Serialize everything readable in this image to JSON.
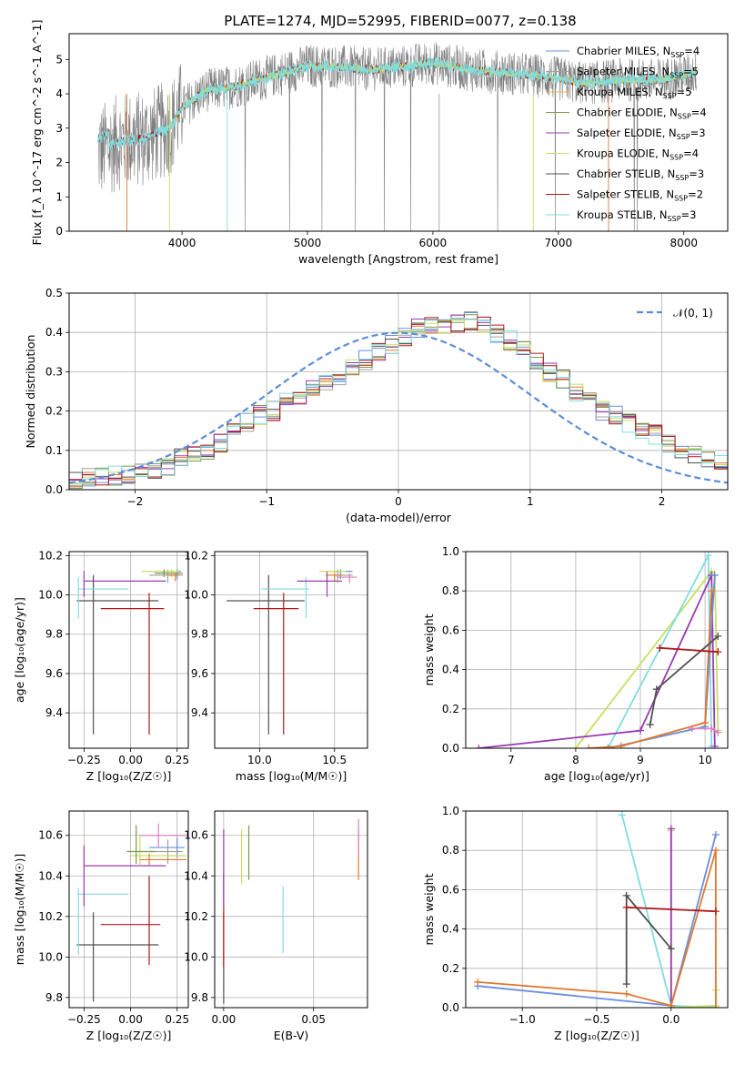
{
  "figure_title": "PLATE=1274, MJD=52995, FIBERID=0077, z=0.138",
  "colors": {
    "Chabrier MILES": "#6a8ee0",
    "Salpeter MILES": "#a0a0a0",
    "Kroupa MILES": "#e0b84a",
    "Chabrier ELODIE": "#7a9a4a",
    "Salpeter ELODIE": "#9a3ab0",
    "Kroupa ELODIE": "#c8e060",
    "Chabrier STELIB": "#505050",
    "Salpeter STELIB": "#b01818",
    "Kroupa STELIB": "#80dce0",
    "extra_orange": "#e07a30",
    "extra_pink": "#e080c0",
    "normal_curve": "#5b8ddb"
  },
  "chart_data": [
    {
      "type": "line",
      "panel": "spectrum",
      "title": "PLATE=1274, MJD=52995, FIBERID=0077, z=0.138",
      "xlabel": "wavelength [Angstrom, rest frame]",
      "ylabel": "Flux [f_λ 10^-17 erg cm^-2 s^-1 A^-1]",
      "xlim": [
        3100,
        8350
      ],
      "ylim": [
        0,
        5.75
      ],
      "xticks": [
        4000,
        5000,
        6000,
        7000,
        8000
      ],
      "yticks": [
        0,
        1,
        2,
        3,
        4,
        5
      ],
      "legend_position": "right",
      "legend": [
        {
          "label": "Chabrier MILES, N",
          "sub": "SSP",
          "tail": "=4"
        },
        {
          "label": "Salpeter MILES, N",
          "sub": "SSP",
          "tail": "=5"
        },
        {
          "label": "Kroupa MILES, N",
          "sub": "SSP",
          "tail": "=5"
        },
        {
          "label": "Chabrier ELODIE, N",
          "sub": "SSP",
          "tail": "=4"
        },
        {
          "label": "Salpeter ELODIE, N",
          "sub": "SSP",
          "tail": "=3"
        },
        {
          "label": "Kroupa ELODIE, N",
          "sub": "SSP",
          "tail": "=4"
        },
        {
          "label": "Chabrier STELIB, N",
          "sub": "SSP",
          "tail": "=3"
        },
        {
          "label": "Salpeter STELIB, N",
          "sub": "SSP",
          "tail": "=2"
        },
        {
          "label": "Kroupa STELIB, N",
          "sub": "SSP",
          "tail": "=3"
        }
      ],
      "continuum_x": [
        3330,
        3500,
        3700,
        3900,
        4000,
        4200,
        4400,
        4600,
        4800,
        5000,
        5200,
        5500,
        5800,
        6000,
        6300,
        6600,
        6900,
        7200,
        7500,
        7800,
        8100
      ],
      "continuum_y": [
        2.3,
        2.6,
        2.7,
        3.0,
        3.6,
        4.1,
        4.2,
        4.4,
        4.6,
        4.8,
        4.8,
        4.7,
        4.8,
        4.9,
        4.7,
        4.6,
        4.5,
        4.3,
        4.4,
        4.4,
        4.6
      ]
    },
    {
      "type": "bar",
      "panel": "residuals",
      "xlabel": "(data-model)/error",
      "ylabel": "Normed distribution",
      "xlim": [
        -2.5,
        2.5
      ],
      "ylim": [
        0,
        0.5
      ],
      "xticks": [
        -2,
        -1,
        0,
        1,
        2
      ],
      "xtick_labels": [
        "−2",
        "−1",
        "0",
        "1",
        "2"
      ],
      "yticks": [
        0,
        0.1,
        0.2,
        0.3,
        0.4,
        0.5
      ],
      "ytick_labels": [
        "0.0",
        "0.1",
        "0.2",
        "0.3",
        "0.4",
        "0.5"
      ],
      "legend_label": "𝒩(0, 1)",
      "legend_position": "top-right",
      "bin_edges_start": -2.5,
      "bin_width": 0.1,
      "hist_values": [
        0.02,
        0.03,
        0.03,
        0.035,
        0.04,
        0.04,
        0.05,
        0.06,
        0.08,
        0.09,
        0.1,
        0.12,
        0.15,
        0.17,
        0.19,
        0.2,
        0.22,
        0.24,
        0.26,
        0.27,
        0.29,
        0.31,
        0.33,
        0.35,
        0.37,
        0.39,
        0.41,
        0.42,
        0.41,
        0.42,
        0.43,
        0.42,
        0.4,
        0.38,
        0.36,
        0.33,
        0.3,
        0.28,
        0.25,
        0.23,
        0.2,
        0.19,
        0.17,
        0.15,
        0.14,
        0.12,
        0.1,
        0.09,
        0.08,
        0.07,
        0.06,
        0.05,
        0.05,
        0.04,
        0.035,
        0.03,
        0.03,
        0.025,
        0.03,
        0.025
      ]
    },
    {
      "type": "scatter",
      "panel": "age_vs_Z",
      "xlabel": "Z [log₁₀(Z/Z☉)]",
      "ylabel": "age  [log₁₀(age/yr)]",
      "xlim": [
        -0.33,
        0.31
      ],
      "ylim": [
        9.22,
        10.22
      ],
      "xticks": [
        -0.25,
        0.0,
        0.25
      ],
      "xtick_labels": [
        "−0.25",
        "0.00",
        "0.25"
      ],
      "yticks": [
        9.4,
        9.6,
        9.8,
        10.0,
        10.2
      ],
      "ytick_labels": [
        "9.4",
        "9.6",
        "9.8",
        "10.0",
        "10.2"
      ],
      "errorbars": [
        {
          "series": "Chabrier STELIB",
          "x": -0.2,
          "xerr": [
            0.09,
            0.35
          ],
          "y": 9.97,
          "yerr": [
            0.68,
            0.13
          ]
        },
        {
          "series": "Salpeter STELIB",
          "x": 0.1,
          "xerr": [
            0.26,
            0.08
          ],
          "y": 9.93,
          "yerr": [
            0.64,
            0.08
          ]
        },
        {
          "series": "Kroupa STELIB",
          "x": -0.28,
          "xerr": [
            0.0,
            0.27
          ],
          "y": 10.03,
          "yerr": [
            0.15,
            0.06
          ]
        },
        {
          "series": "Salpeter ELODIE",
          "x": -0.25,
          "xerr": [
            0.0,
            0.44
          ],
          "y": 10.07,
          "yerr": [
            0.08,
            0.05
          ]
        },
        {
          "series": "Chabrier MILES",
          "x": 0.25,
          "xerr": [
            0.15,
            0.02
          ],
          "y": 10.12,
          "yerr": [
            0.04,
            0.01
          ]
        },
        {
          "series": "Salpeter MILES",
          "x": 0.2,
          "xerr": [
            0.1,
            0.08
          ],
          "y": 10.1,
          "yerr": [
            0.04,
            0.03
          ]
        },
        {
          "series": "Kroupa ELODIE",
          "x": 0.22,
          "xerr": [
            0.16,
            0.04
          ],
          "y": 10.12,
          "yerr": [
            0.03,
            0.01
          ]
        },
        {
          "series": "extra_orange",
          "x": 0.24,
          "xerr": [
            0.04,
            0.02
          ],
          "y": 10.1,
          "yerr": [
            0.03,
            0.01
          ]
        },
        {
          "series": "Chabrier ELODIE",
          "x": 0.18,
          "xerr": [
            0.05,
            0.1
          ],
          "y": 10.11,
          "yerr": [
            0.02,
            0.02
          ]
        }
      ]
    },
    {
      "type": "scatter",
      "panel": "age_vs_mass",
      "xlabel": "mass [log₁₀(M/M☉)]",
      "ylabel": "",
      "xlim": [
        9.7,
        10.72
      ],
      "ylim": [
        9.22,
        10.22
      ],
      "xticks": [
        10.0,
        10.5
      ],
      "xtick_labels": [
        "10.0",
        "10.5"
      ],
      "yticks": [
        9.4,
        9.6,
        9.8,
        10.0,
        10.2
      ],
      "ytick_labels": [
        "9.4",
        "9.6",
        "9.8",
        "10.0",
        "10.2"
      ],
      "errorbars": [
        {
          "series": "Chabrier STELIB",
          "x": 10.06,
          "xerr": [
            0.28,
            0.24
          ],
          "y": 9.97,
          "yerr": [
            0.68,
            0.13
          ]
        },
        {
          "series": "Salpeter STELIB",
          "x": 10.16,
          "xerr": [
            0.2,
            0.1
          ],
          "y": 9.93,
          "yerr": [
            0.64,
            0.08
          ]
        },
        {
          "series": "Kroupa STELIB",
          "x": 10.31,
          "xerr": [
            0.3,
            0.02
          ],
          "y": 10.03,
          "yerr": [
            0.15,
            0.06
          ]
        },
        {
          "series": "Salpeter ELODIE",
          "x": 10.45,
          "xerr": [
            0.2,
            0.1
          ],
          "y": 10.07,
          "yerr": [
            0.08,
            0.05
          ]
        },
        {
          "series": "Chabrier MILES",
          "x": 10.54,
          "xerr": [
            0.06,
            0.08
          ],
          "y": 10.12,
          "yerr": [
            0.04,
            0.01
          ]
        },
        {
          "series": "Salpeter MILES",
          "x": 10.52,
          "xerr": [
            0.07,
            0.1
          ],
          "y": 10.1,
          "yerr": [
            0.04,
            0.03
          ]
        },
        {
          "series": "Kroupa ELODIE",
          "x": 10.5,
          "xerr": [
            0.1,
            0.08
          ],
          "y": 10.12,
          "yerr": [
            0.03,
            0.01
          ]
        },
        {
          "series": "extra_orange",
          "x": 10.5,
          "xerr": [
            0.06,
            0.06
          ],
          "y": 10.1,
          "yerr": [
            0.03,
            0.01
          ]
        },
        {
          "series": "extra_pink",
          "x": 10.6,
          "xerr": [
            0.08,
            0.05
          ],
          "y": 10.09,
          "yerr": [
            0.03,
            0.02
          ]
        }
      ]
    },
    {
      "type": "line",
      "panel": "mass_weight_vs_age",
      "xlabel": "age  [log₁₀(age/yr)]",
      "ylabel": "mass weight",
      "xlim": [
        6.3,
        10.35
      ],
      "ylim": [
        0,
        1
      ],
      "xticks": [
        7,
        8,
        9,
        10
      ],
      "xtick_labels": [
        "7",
        "8",
        "9",
        "10"
      ],
      "yticks": [
        0,
        0.2,
        0.4,
        0.6,
        0.8,
        1.0
      ],
      "ytick_labels": [
        "0.0",
        "0.2",
        "0.4",
        "0.6",
        "0.8",
        "1.0"
      ],
      "series": [
        {
          "name": "Kroupa ELODIE",
          "x": [
            8.0,
            10.1,
            10.15,
            10.2
          ],
          "y": [
            0.0,
            0.9,
            0.88,
            0.09
          ]
        },
        {
          "name": "Kroupa STELIB",
          "x": [
            8.5,
            10.05,
            10.1
          ],
          "y": [
            0.0,
            0.98,
            0.01
          ]
        },
        {
          "name": "Salpeter ELODIE",
          "x": [
            6.5,
            9.0,
            10.1,
            10.15
          ],
          "y": [
            0.0,
            0.09,
            0.88,
            0.01
          ]
        },
        {
          "name": "Chabrier MILES",
          "x": [
            8.5,
            10.0,
            10.15
          ],
          "y": [
            0.0,
            0.11,
            0.88
          ]
        },
        {
          "name": "extra_orange",
          "x": [
            8.2,
            8.7,
            10.0,
            10.1
          ],
          "y": [
            0.0,
            0.01,
            0.13,
            0.8
          ]
        },
        {
          "name": "extra_pink",
          "x": [
            9.8,
            10.1,
            10.2
          ],
          "y": [
            0.1,
            0.1,
            0.08
          ]
        },
        {
          "name": "Chabrier STELIB",
          "x": [
            9.15,
            9.25,
            10.2
          ],
          "y": [
            0.12,
            0.3,
            0.57
          ]
        },
        {
          "name": "Salpeter STELIB",
          "x": [
            9.3,
            10.2
          ],
          "y": [
            0.51,
            0.49
          ]
        }
      ]
    },
    {
      "type": "scatter",
      "panel": "mass_vs_Z",
      "xlabel": "Z [log₁₀(Z/Z☉)]",
      "ylabel": "mass [log₁₀(M/M☉)]",
      "xlim": [
        -0.33,
        0.31
      ],
      "ylim": [
        9.75,
        10.72
      ],
      "xticks": [
        -0.25,
        0.0,
        0.25
      ],
      "xtick_labels": [
        "−0.25",
        "0.00",
        "0.25"
      ],
      "yticks": [
        9.8,
        10.0,
        10.2,
        10.4,
        10.6
      ],
      "ytick_labels": [
        "9.8",
        "10.0",
        "10.2",
        "10.4",
        "10.6"
      ],
      "errorbars": [
        {
          "series": "Chabrier STELIB",
          "x": -0.2,
          "xerr": [
            0.09,
            0.35
          ],
          "y": 10.06,
          "yerr": [
            0.28,
            0.16
          ]
        },
        {
          "series": "Salpeter STELIB",
          "x": 0.1,
          "xerr": [
            0.26,
            0.06
          ],
          "y": 10.16,
          "yerr": [
            0.2,
            0.24
          ]
        },
        {
          "series": "Kroupa STELIB",
          "x": -0.28,
          "xerr": [
            0.0,
            0.27
          ],
          "y": 10.31,
          "yerr": [
            0.3,
            0.03
          ]
        },
        {
          "series": "Salpeter ELODIE",
          "x": -0.25,
          "xerr": [
            0.0,
            0.44
          ],
          "y": 10.45,
          "yerr": [
            0.2,
            0.1
          ]
        },
        {
          "series": "Chabrier MILES",
          "x": 0.25,
          "xerr": [
            0.15,
            0.04
          ],
          "y": 10.54,
          "yerr": [
            0.05,
            0.05
          ]
        },
        {
          "series": "Salpeter MILES",
          "x": 0.2,
          "xerr": [
            0.1,
            0.08
          ],
          "y": 10.52,
          "yerr": [
            0.06,
            0.06
          ]
        },
        {
          "series": "Kroupa ELODIE",
          "x": 0.05,
          "xerr": [
            0.05,
            0.25
          ],
          "y": 10.5,
          "yerr": [
            0.05,
            0.1
          ]
        },
        {
          "series": "extra_orange",
          "x": 0.1,
          "xerr": [
            0.05,
            0.2
          ],
          "y": 10.48,
          "yerr": [
            0.03,
            0.03
          ]
        },
        {
          "series": "extra_pink",
          "x": 0.15,
          "xerr": [
            0.1,
            0.15
          ],
          "y": 10.6,
          "yerr": [
            0.06,
            0.06
          ]
        },
        {
          "series": "Chabrier ELODIE",
          "x": 0.03,
          "xerr": [
            0.05,
            0.1
          ],
          "y": 10.52,
          "yerr": [
            0.06,
            0.13
          ]
        }
      ]
    },
    {
      "type": "scatter",
      "panel": "mass_vs_ebv",
      "xlabel": "E(B-V)",
      "ylabel": "",
      "xlim": [
        -0.005,
        0.08
      ],
      "ylim": [
        9.75,
        10.72
      ],
      "xticks": [
        0.0,
        0.05
      ],
      "xtick_labels": [
        "0.00",
        "0.05"
      ],
      "yticks": [
        9.8,
        10.0,
        10.2,
        10.4,
        10.6
      ],
      "ytick_labels": [
        "9.8",
        "10.0",
        "10.2",
        "10.4",
        "10.6"
      ],
      "vlines": [
        {
          "series": "Chabrier STELIB",
          "x": 0.0,
          "y": [
            9.77,
            10.22
          ]
        },
        {
          "series": "Salpeter STELIB",
          "x": 0.0,
          "y": [
            9.95,
            10.41
          ]
        },
        {
          "series": "Salpeter ELODIE",
          "x": 0.0,
          "y": [
            10.25,
            10.63
          ]
        },
        {
          "series": "Kroupa ELODIE",
          "x": 0.01,
          "y": [
            10.36,
            10.63
          ]
        },
        {
          "series": "Chabrier ELODIE",
          "x": 0.014,
          "y": [
            10.38,
            10.65
          ]
        },
        {
          "series": "Kroupa STELIB",
          "x": 0.033,
          "y": [
            10.02,
            10.35
          ]
        },
        {
          "series": "extra_orange",
          "x": 0.075,
          "y": [
            10.38,
            10.64
          ]
        },
        {
          "series": "extra_pink",
          "x": 0.075,
          "y": [
            10.5,
            10.68
          ]
        }
      ]
    },
    {
      "type": "line",
      "panel": "mass_weight_vs_Z",
      "xlabel": "Z [log₁₀(Z/Z☉)]",
      "ylabel": "mass weight",
      "xlim": [
        -1.38,
        0.38
      ],
      "ylim": [
        0,
        1
      ],
      "xticks": [
        -1.0,
        -0.5,
        0.0
      ],
      "xtick_labels": [
        "−1.0",
        "−0.5",
        "0.0"
      ],
      "yticks": [
        0,
        0.2,
        0.4,
        0.6,
        0.8,
        1.0
      ],
      "ytick_labels": [
        "0.0",
        "0.2",
        "0.4",
        "0.6",
        "0.8",
        "1.0"
      ],
      "series": [
        {
          "name": "Kroupa STELIB",
          "x": [
            -0.33,
            0.0,
            0.3
          ],
          "y": [
            0.98,
            0.01,
            0.0
          ]
        },
        {
          "name": "Kroupa ELODIE",
          "x": [
            0.0,
            0.0,
            0.3,
            0.3
          ],
          "y": [
            0.9,
            0.0,
            0.01,
            0.09
          ]
        },
        {
          "name": "Salpeter ELODIE",
          "x": [
            0.0,
            0.0
          ],
          "y": [
            0.91,
            0.0
          ]
        },
        {
          "name": "Chabrier MILES",
          "x": [
            -1.3,
            0.0,
            0.3
          ],
          "y": [
            0.11,
            0.01,
            0.88
          ]
        },
        {
          "name": "extra_orange",
          "x": [
            -1.3,
            -0.3,
            0.0,
            0.3,
            0.3
          ],
          "y": [
            0.13,
            0.07,
            0.01,
            0.8,
            0.0
          ]
        },
        {
          "name": "Chabrier STELIB",
          "x": [
            -0.3,
            -0.3,
            0.0
          ],
          "y": [
            0.12,
            0.57,
            0.3
          ]
        },
        {
          "name": "Salpeter STELIB",
          "x": [
            -0.3,
            0.3
          ],
          "y": [
            0.51,
            0.49
          ]
        }
      ]
    }
  ]
}
